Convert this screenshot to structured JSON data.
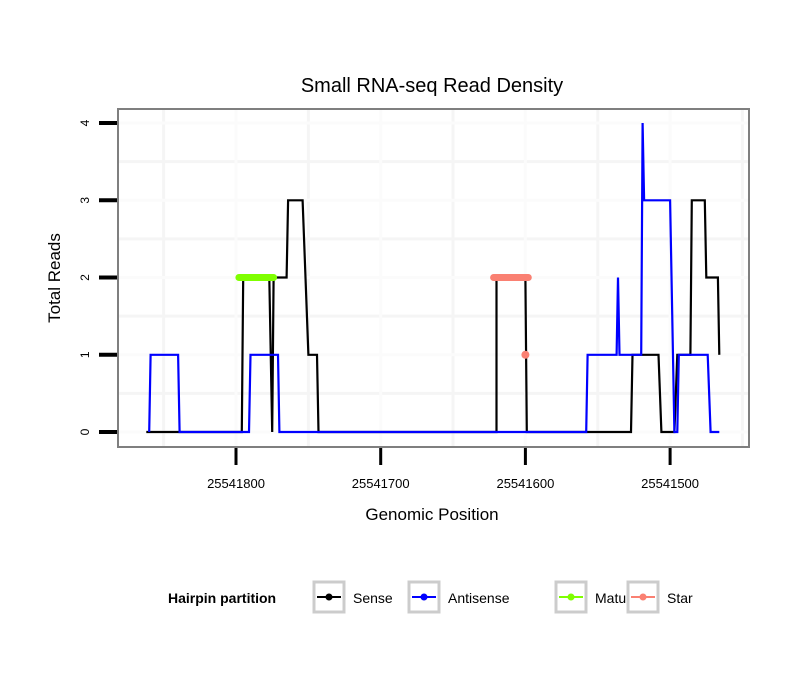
{
  "chart_data": {
    "type": "line",
    "title": "Small RNA-seq Read Density",
    "xlabel": "Genomic Position",
    "ylabel": "Total Reads",
    "x_reversed": true,
    "xlim": [
      25541870,
      25541437
    ],
    "ylim": [
      -0.2,
      4.2
    ],
    "x_ticks": [
      25541800,
      25541700,
      25541600,
      25541500
    ],
    "x_tick_labels": [
      "25541800",
      "25541700",
      "25541600",
      "25541500"
    ],
    "y_ticks": [
      0,
      1,
      2,
      3,
      4
    ],
    "y_tick_labels": [
      "0",
      "1",
      "2",
      "3",
      "4"
    ],
    "grid": true,
    "legend": {
      "title": "Hairpin partition",
      "position": "bottom",
      "entries": [
        {
          "label": "Sense",
          "color": "#000000"
        },
        {
          "label": "Antisense",
          "color": "#0000ff"
        },
        {
          "label": "Mature",
          "color": "#7fff00"
        },
        {
          "label": "Star",
          "color": "#fa8072"
        }
      ]
    },
    "series": [
      {
        "name": "Sense",
        "color": "#000000",
        "points": [
          [
            25541862,
            0
          ],
          [
            25541796,
            0
          ],
          [
            25541795,
            2
          ],
          [
            25541777,
            2
          ],
          [
            25541775,
            0
          ],
          [
            25541774,
            2
          ],
          [
            25541765,
            2
          ],
          [
            25541764,
            3
          ],
          [
            25541754,
            3
          ],
          [
            25541750,
            1
          ],
          [
            25541744,
            1
          ],
          [
            25541743,
            0
          ],
          [
            25541620,
            0
          ],
          [
            25541620,
            2
          ],
          [
            25541600,
            2
          ],
          [
            25541599,
            0
          ],
          [
            25541527,
            0
          ],
          [
            25541526,
            1
          ],
          [
            25541508,
            1
          ],
          [
            25541506,
            0
          ],
          [
            25541497,
            0
          ],
          [
            25541495,
            1
          ],
          [
            25541486,
            1
          ],
          [
            25541485,
            3
          ],
          [
            25541476,
            3
          ],
          [
            25541475,
            2
          ],
          [
            25541467,
            2
          ],
          [
            25541466,
            1
          ]
        ]
      },
      {
        "name": "Antisense",
        "color": "#0000ff",
        "points": [
          [
            25541860,
            0
          ],
          [
            25541859,
            1
          ],
          [
            25541840,
            1
          ],
          [
            25541839,
            0
          ],
          [
            25541791,
            0
          ],
          [
            25541790,
            1
          ],
          [
            25541771,
            1
          ],
          [
            25541770,
            0
          ],
          [
            25541558,
            0
          ],
          [
            25541557,
            1
          ],
          [
            25541537,
            1
          ],
          [
            25541536,
            2
          ],
          [
            25541535,
            1
          ],
          [
            25541520,
            1
          ],
          [
            25541519,
            4
          ],
          [
            25541518,
            3
          ],
          [
            25541500,
            3
          ],
          [
            25541497,
            0
          ],
          [
            25541495,
            0
          ],
          [
            25541494,
            1
          ],
          [
            25541474,
            1
          ],
          [
            25541472,
            0
          ],
          [
            25541466,
            0
          ]
        ]
      },
      {
        "name": "Mature",
        "color": "#7fff00",
        "points": [
          [
            25541798,
            2
          ],
          [
            25541774,
            2
          ]
        ]
      },
      {
        "name": "Star",
        "color": "#fa8072",
        "points": [
          [
            25541622,
            2
          ],
          [
            25541598,
            2
          ]
        ],
        "extra_points": [
          [
            25541600,
            1
          ]
        ]
      }
    ]
  }
}
